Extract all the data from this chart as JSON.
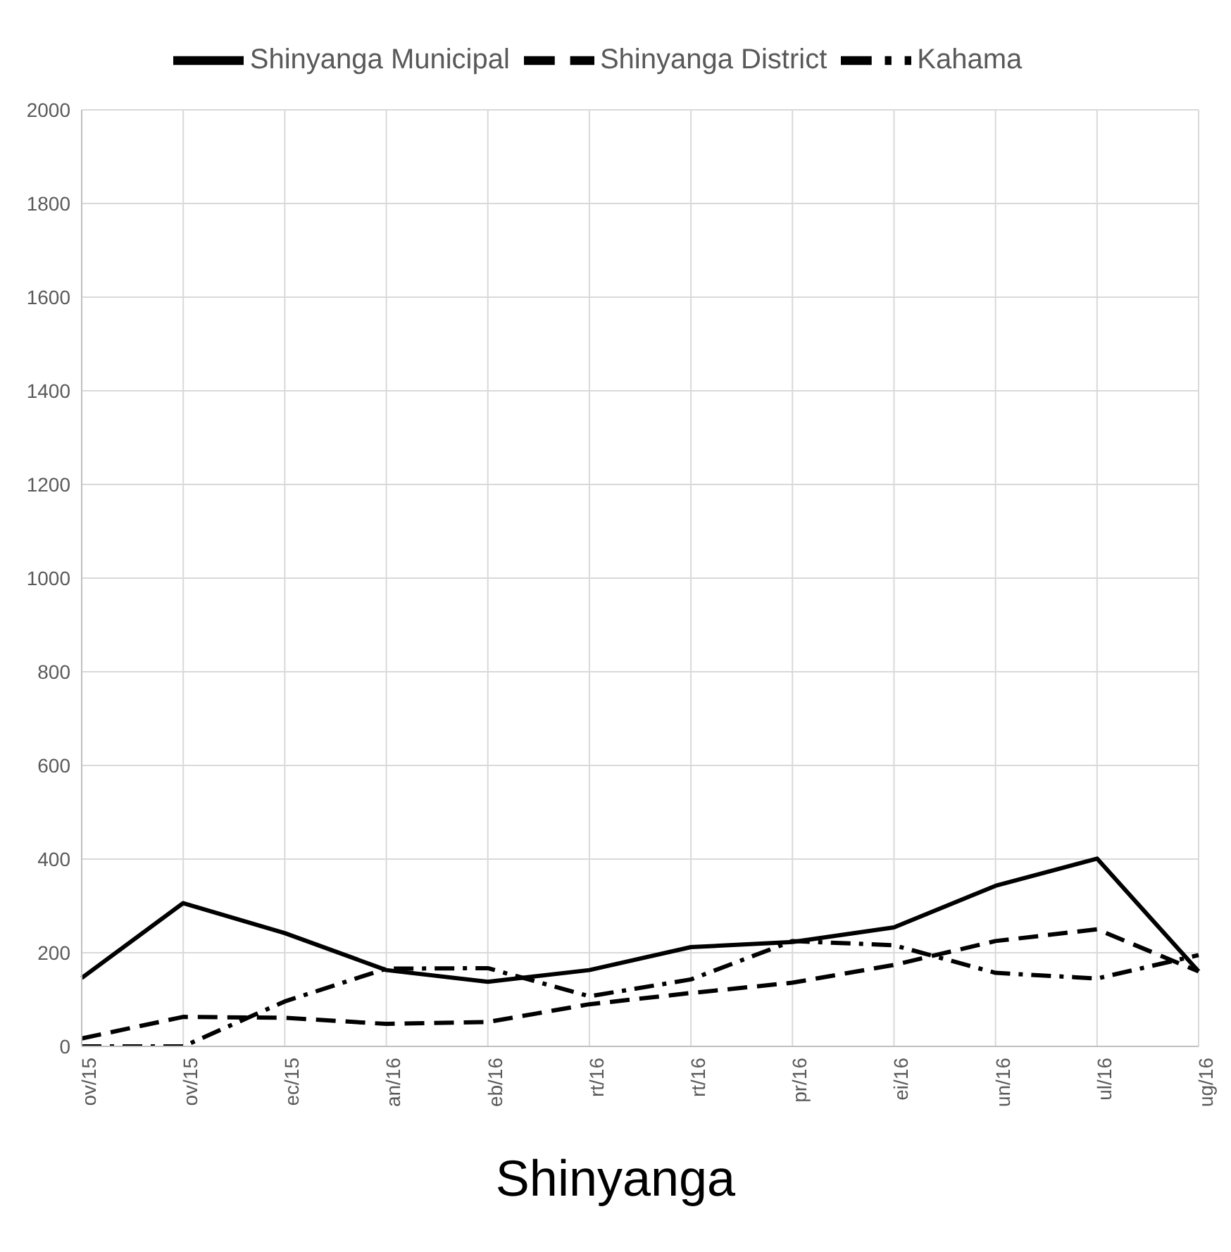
{
  "chart_data": {
    "type": "line",
    "title": "Shinyanga",
    "categories": [
      "ov/15",
      "ov/15",
      "ec/15",
      "an/16",
      "eb/16",
      "rt/16",
      "rt/16",
      "pr/16",
      "ei/16",
      "un/16",
      "ul/16",
      "ug/16"
    ],
    "ylim": [
      0,
      2000
    ],
    "yticks": [
      0,
      200,
      400,
      600,
      800,
      1000,
      1200,
      1400,
      1600,
      1800,
      2000
    ],
    "grid": true,
    "legend": "top",
    "marker": "none",
    "series": [
      {
        "name": "Shinyanga Municipal",
        "color": "#000000",
        "line_style": "solid",
        "values": [
          146,
          306,
          242,
          163,
          138,
          163,
          212,
          223,
          254,
          343,
          401,
          160
        ]
      },
      {
        "name": "Shinyanga District",
        "color": "#000000",
        "line_style": "dashed",
        "values": [
          17,
          63,
          61,
          48,
          52,
          90,
          114,
          136,
          174,
          225,
          250,
          160
        ]
      },
      {
        "name": "Kahama",
        "color": "#000000",
        "line_style": "dashdot",
        "values": [
          0,
          0,
          96,
          166,
          167,
          107,
          143,
          225,
          216,
          157,
          145,
          195
        ]
      }
    ]
  }
}
